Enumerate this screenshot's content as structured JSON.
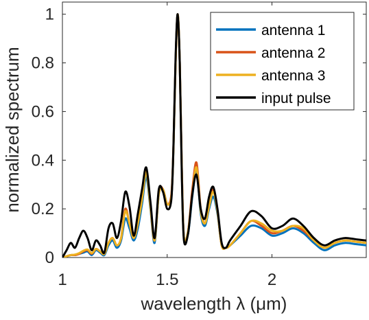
{
  "chart_data": {
    "type": "line",
    "xlabel": "wavelength λ (μm)",
    "ylabel": "normalized spectrum",
    "xlim": [
      1.0,
      2.45
    ],
    "ylim": [
      0,
      1.05
    ],
    "xticks": [
      "1",
      "1.5",
      "2"
    ],
    "xtick_values": [
      1,
      1.5,
      2
    ],
    "yticks": [
      "0",
      "0.2",
      "0.4",
      "0.6",
      "0.8",
      "1"
    ],
    "ytick_values": [
      0,
      0.2,
      0.4,
      0.6,
      0.8,
      1
    ],
    "grid": false,
    "legend_position": "top-right",
    "x": [
      1.0,
      1.02,
      1.04,
      1.06,
      1.08,
      1.1,
      1.12,
      1.14,
      1.16,
      1.18,
      1.2,
      1.22,
      1.24,
      1.26,
      1.28,
      1.3,
      1.32,
      1.34,
      1.36,
      1.38,
      1.4,
      1.42,
      1.44,
      1.46,
      1.48,
      1.5,
      1.52,
      1.53,
      1.54,
      1.55,
      1.56,
      1.57,
      1.58,
      1.6,
      1.62,
      1.64,
      1.66,
      1.68,
      1.7,
      1.72,
      1.74,
      1.76,
      1.78,
      1.8,
      1.85,
      1.9,
      1.95,
      2.0,
      2.05,
      2.1,
      2.15,
      2.2,
      2.25,
      2.3,
      2.35,
      2.4,
      2.45
    ],
    "series": [
      {
        "name": "antenna 1",
        "color": "#0072BD",
        "values": [
          0.0,
          0.005,
          0.01,
          0.01,
          0.015,
          0.02,
          0.025,
          0.01,
          0.03,
          0.02,
          0.01,
          0.05,
          0.07,
          0.04,
          0.07,
          0.16,
          0.12,
          0.07,
          0.12,
          0.22,
          0.33,
          0.2,
          0.06,
          0.26,
          0.28,
          0.22,
          0.25,
          0.45,
          0.8,
          1.0,
          0.8,
          0.35,
          0.08,
          0.1,
          0.25,
          0.36,
          0.18,
          0.13,
          0.2,
          0.25,
          0.18,
          0.05,
          0.04,
          0.05,
          0.09,
          0.13,
          0.12,
          0.09,
          0.1,
          0.12,
          0.1,
          0.06,
          0.03,
          0.05,
          0.06,
          0.055,
          0.05
        ]
      },
      {
        "name": "antenna 2",
        "color": "#D95319",
        "values": [
          0.0,
          0.005,
          0.01,
          0.01,
          0.015,
          0.025,
          0.03,
          0.015,
          0.035,
          0.025,
          0.015,
          0.06,
          0.08,
          0.05,
          0.08,
          0.2,
          0.14,
          0.08,
          0.14,
          0.25,
          0.36,
          0.21,
          0.07,
          0.27,
          0.28,
          0.22,
          0.26,
          0.46,
          0.8,
          1.0,
          0.8,
          0.36,
          0.08,
          0.11,
          0.28,
          0.39,
          0.2,
          0.14,
          0.22,
          0.28,
          0.19,
          0.05,
          0.04,
          0.05,
          0.1,
          0.15,
          0.13,
          0.1,
          0.11,
          0.13,
          0.11,
          0.07,
          0.04,
          0.06,
          0.07,
          0.065,
          0.06
        ]
      },
      {
        "name": "antenna 3",
        "color": "#EDB120",
        "values": [
          0.0,
          0.005,
          0.01,
          0.012,
          0.018,
          0.028,
          0.033,
          0.018,
          0.035,
          0.025,
          0.015,
          0.06,
          0.08,
          0.05,
          0.08,
          0.19,
          0.14,
          0.08,
          0.14,
          0.24,
          0.35,
          0.21,
          0.07,
          0.26,
          0.28,
          0.22,
          0.25,
          0.45,
          0.8,
          1.0,
          0.8,
          0.35,
          0.08,
          0.11,
          0.26,
          0.37,
          0.19,
          0.14,
          0.21,
          0.27,
          0.19,
          0.05,
          0.04,
          0.05,
          0.1,
          0.15,
          0.14,
          0.11,
          0.11,
          0.13,
          0.12,
          0.07,
          0.04,
          0.06,
          0.07,
          0.065,
          0.06
        ]
      },
      {
        "name": "input pulse",
        "color": "#000000",
        "values": [
          0.0,
          0.03,
          0.06,
          0.04,
          0.08,
          0.11,
          0.08,
          0.03,
          0.07,
          0.05,
          0.02,
          0.12,
          0.14,
          0.08,
          0.15,
          0.27,
          0.21,
          0.09,
          0.18,
          0.28,
          0.37,
          0.23,
          0.08,
          0.28,
          0.27,
          0.2,
          0.24,
          0.46,
          0.82,
          1.0,
          0.8,
          0.33,
          0.07,
          0.1,
          0.26,
          0.34,
          0.2,
          0.16,
          0.25,
          0.29,
          0.2,
          0.06,
          0.04,
          0.07,
          0.13,
          0.19,
          0.17,
          0.12,
          0.13,
          0.16,
          0.13,
          0.08,
          0.05,
          0.07,
          0.08,
          0.075,
          0.07
        ]
      }
    ]
  }
}
